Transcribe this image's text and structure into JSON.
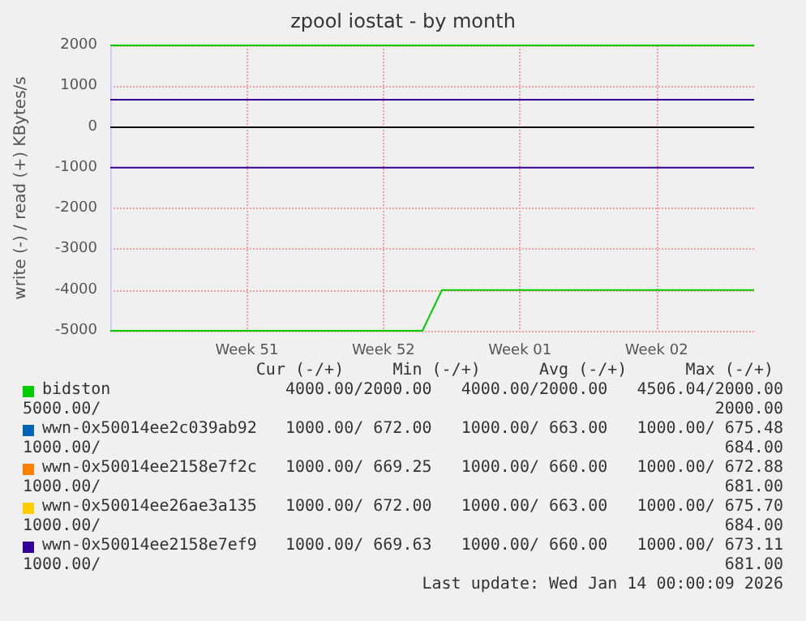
{
  "chart_data": {
    "type": "line",
    "title": "zpool iostat - by month",
    "ylabel": "write (-) / read (+) KBytes/s",
    "categories": [
      null,
      null,
      null,
      null,
      null,
      null,
      null,
      "Week 51",
      null,
      null,
      null,
      null,
      null,
      null,
      "Week 52",
      null,
      null,
      null,
      null,
      null,
      null,
      "Week 01",
      null,
      null,
      null,
      null,
      null,
      null,
      "Week 02",
      null,
      null,
      null,
      null,
      null
    ],
    "ylim": [
      -5000,
      2000
    ],
    "yticks": [
      -5000,
      -4000,
      -3000,
      -2000,
      -1000,
      0,
      1000,
      2000
    ],
    "grid": true,
    "legend": "bottom",
    "marker": "none",
    "line_style": "solid",
    "ref_lines": [
      {
        "axis": "y",
        "value": 0,
        "label": null,
        "color": "#000000"
      }
    ],
    "series": [
      {
        "name": "bidston",
        "color": "#00cc00",
        "values": [
          2000,
          2000,
          2000,
          2000,
          2000,
          2000,
          2000,
          2000,
          2000,
          2000,
          2000,
          2000,
          2000,
          2000,
          2000,
          2000,
          2000,
          2000,
          2000,
          2000,
          2000,
          2000,
          2000,
          2000,
          2000,
          2000,
          2000,
          2000,
          2000,
          2000,
          2000,
          2000,
          2000,
          2000
        ]
      },
      {
        "color": "#00cc00",
        "values": [
          -5000,
          -5000,
          -5000,
          -5000,
          -5000,
          -5000,
          -5000,
          -5000,
          -5000,
          -5000,
          -5000,
          -5000,
          -5000,
          -5000,
          -5000,
          -5000,
          -5000,
          -4000,
          -4000,
          -4000,
          -4000,
          -4000,
          -4000,
          -4000,
          -4000,
          -4000,
          -4000,
          -4000,
          -4000,
          -4000,
          -4000,
          -4000,
          -4000,
          -4000
        ]
      },
      {
        "name": "wwn-0x50014ee2c039ab92",
        "color": "#0066b3",
        "values": [
          null,
          null,
          null,
          null,
          null,
          null,
          null,
          null,
          null,
          null,
          null,
          null,
          null,
          null,
          null,
          null,
          null,
          null,
          null,
          null,
          null,
          null,
          null,
          null,
          null,
          null,
          null,
          null,
          null,
          null,
          null,
          null,
          null,
          null
        ]
      },
      {
        "name": "wwn-0x50014ee2158e7f2c",
        "color": "#ff8000",
        "values": [
          null,
          null,
          null,
          null,
          null,
          null,
          null,
          null,
          null,
          null,
          null,
          null,
          null,
          null,
          null,
          null,
          null,
          null,
          null,
          null,
          null,
          null,
          null,
          null,
          null,
          null,
          null,
          null,
          null,
          null,
          null,
          null,
          null,
          null
        ]
      },
      {
        "name": "wwn-0x50014ee26ae3a135",
        "color": "#ffcc00",
        "values": [
          null,
          null,
          null,
          null,
          null,
          null,
          null,
          null,
          null,
          null,
          null,
          null,
          null,
          null,
          null,
          null,
          null,
          null,
          null,
          null,
          null,
          null,
          null,
          null,
          null,
          null,
          null,
          null,
          null,
          null,
          null,
          null,
          null,
          null
        ]
      },
      {
        "name": "wwn-0x50014ee2158e7ef9",
        "color": "#330099",
        "values": [
          670,
          670,
          670,
          670,
          670,
          670,
          670,
          670,
          670,
          670,
          670,
          670,
          670,
          670,
          670,
          670,
          670,
          670,
          670,
          670,
          670,
          670,
          670,
          670,
          670,
          670,
          670,
          670,
          670,
          670,
          670,
          670,
          670,
          670
        ]
      },
      {
        "color": "#330099",
        "values": [
          -1000,
          -1000,
          -1000,
          -1000,
          -1000,
          -1000,
          -1000,
          -1000,
          -1000,
          -1000,
          -1000,
          -1000,
          -1000,
          -1000,
          -1000,
          -1000,
          -1000,
          -1000,
          -1000,
          -1000,
          -1000,
          -1000,
          -1000,
          -1000,
          -1000,
          -1000,
          -1000,
          -1000,
          -1000,
          -1000,
          -1000,
          -1000,
          -1000,
          -1000
        ]
      }
    ],
    "annotations": [
      "Cur (-/+)     Min (-/+)      Avg (-/+)      Max (-/+)",
      "4000.00/2000.00   4000.00/2000.00   4506.04/2000.00",
      "5000.00/",
      "2000.00",
      "1000.00/ 672.00   1000.00/ 663.00   1000.00/ 675.48",
      "1000.00/",
      "684.00",
      "1000.00/ 669.25   1000.00/ 660.00   1000.00/ 672.88",
      "1000.00/",
      "681.00",
      "1000.00/ 672.00   1000.00/ 663.00   1000.00/ 675.70",
      "1000.00/",
      "684.00",
      "1000.00/ 669.63   1000.00/ 660.00   1000.00/ 673.11",
      "1000.00/",
      "681.00",
      "Last update: Wed Jan 14 00:00:09 2026"
    ]
  }
}
